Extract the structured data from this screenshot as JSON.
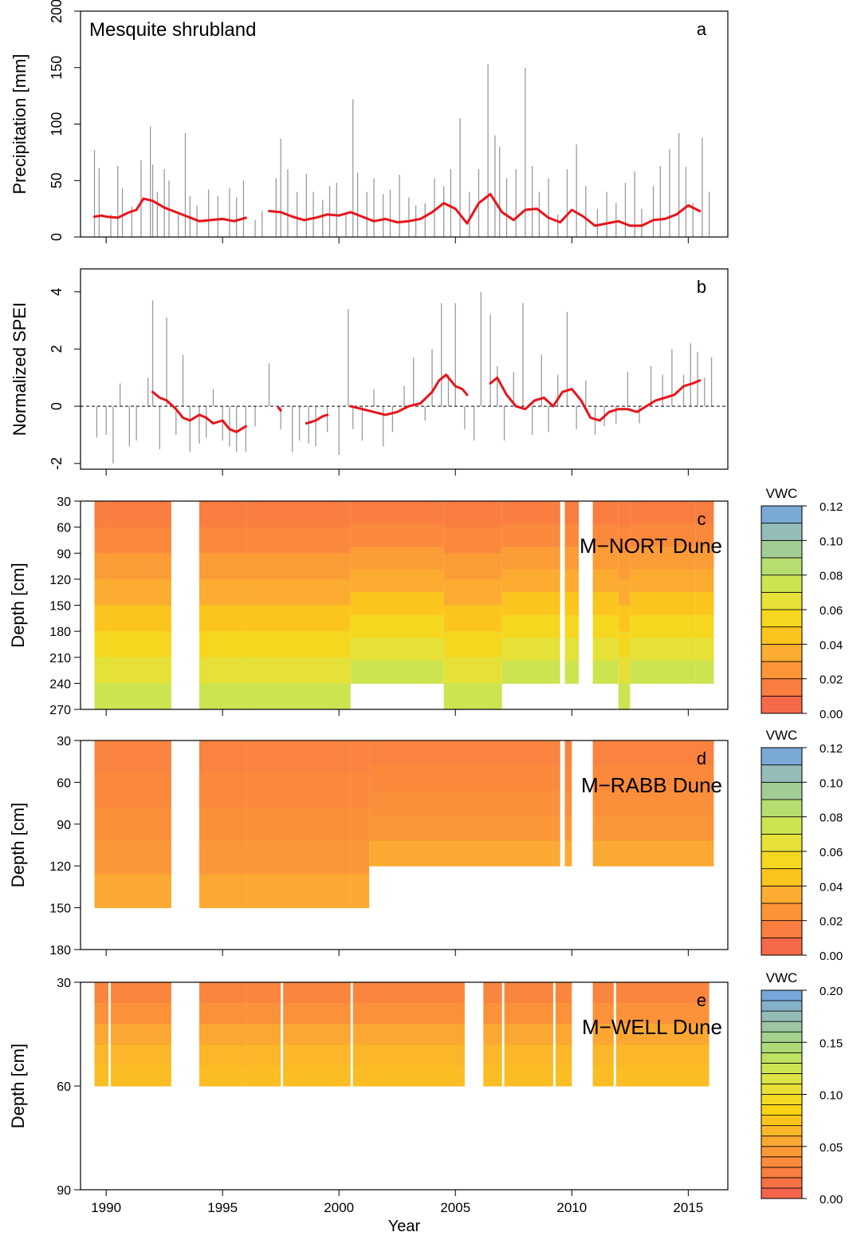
{
  "figure": {
    "xlabel": "Year",
    "xlim": [
      1988.9,
      2016.7
    ],
    "xticks": [
      1990,
      1995,
      2000,
      2005,
      2010,
      2015
    ]
  },
  "chart_data": [
    {
      "panel": "a",
      "letter": "a",
      "type": "bar+line",
      "title": "Mesquite shrubland",
      "ylabel": "Precipitation [mm]",
      "ylim": [
        0,
        200
      ],
      "yticks": [
        0,
        50,
        100,
        150,
        200
      ],
      "zero_line": "dashed",
      "bars": {
        "x": [
          1989.5,
          1989.7,
          1990.2,
          1990.5,
          1990.7,
          1991.1,
          1991.5,
          1991.9,
          1992.0,
          1992.2,
          1992.5,
          1992.7,
          1993.1,
          1993.4,
          1993.6,
          1993.9,
          1994.4,
          1994.8,
          1995.3,
          1995.6,
          1995.9,
          1996.4,
          1996.7,
          1997.3,
          1997.5,
          1997.8,
          1998.2,
          1998.6,
          1998.9,
          1999.3,
          1999.6,
          1999.9,
          2000.3,
          2000.6,
          2000.8,
          2001.2,
          2001.5,
          2001.9,
          2002.2,
          2002.6,
          2003.0,
          2003.3,
          2003.7,
          2004.1,
          2004.5,
          2004.8,
          2005.2,
          2005.6,
          2006.0,
          2006.4,
          2006.7,
          2006.9,
          2007.2,
          2007.6,
          2008.0,
          2008.3,
          2008.6,
          2009.0,
          2009.4,
          2009.8,
          2010.2,
          2010.6,
          2011.1,
          2011.5,
          2011.9,
          2012.3,
          2012.7,
          2013.0,
          2013.5,
          2013.8,
          2014.2,
          2014.6,
          2014.9,
          2015.2,
          2015.6,
          2015.9
        ],
        "values": [
          77,
          61,
          20,
          63,
          43,
          27,
          68,
          98,
          64,
          40,
          60,
          50,
          20,
          92,
          36,
          28,
          42,
          36,
          43,
          35,
          50,
          15,
          23,
          52,
          87,
          60,
          40,
          56,
          40,
          33,
          45,
          48,
          20,
          122,
          57,
          40,
          52,
          38,
          42,
          55,
          35,
          28,
          30,
          52,
          45,
          60,
          105,
          40,
          60,
          153,
          90,
          80,
          52,
          60,
          150,
          63,
          40,
          52,
          20,
          60,
          82,
          45,
          25,
          40,
          30,
          48,
          58,
          25,
          45,
          63,
          78,
          92,
          62,
          30,
          88,
          40
        ]
      },
      "line": {
        "x": [
          1989.5,
          1989.8,
          1990.0,
          1990.5,
          1991.0,
          1991.3,
          1991.6,
          1992.0,
          1992.5,
          1993.0,
          1993.5,
          1994.0,
          1994.5,
          1995.0,
          1995.5,
          1996.0
        ],
        "y": [
          18,
          19,
          18,
          17,
          22,
          24,
          34,
          32,
          26,
          22,
          18,
          14,
          15,
          16,
          14,
          17
        ]
      },
      "line2": {
        "x": [
          1997.0,
          1997.5,
          1998.0,
          1998.5,
          1999.0,
          1999.5,
          2000.0,
          2000.5,
          2001.0,
          2001.5,
          2002.0,
          2002.5,
          2003.0,
          2003.5,
          2004.0,
          2004.5,
          2005.0,
          2005.5,
          2006.0,
          2006.5,
          2007.0,
          2007.5,
          2008.0,
          2008.5,
          2009.0,
          2009.5,
          2010.0,
          2010.5,
          2011.0,
          2011.5,
          2012.0,
          2012.5,
          2013.0,
          2013.5,
          2014.0,
          2014.5,
          2015.0,
          2015.5
        ],
        "y": [
          23,
          22,
          18,
          15,
          17,
          20,
          19,
          22,
          18,
          14,
          16,
          13,
          14,
          16,
          22,
          30,
          25,
          12,
          30,
          38,
          22,
          15,
          24,
          25,
          17,
          13,
          24,
          18,
          10,
          12,
          14,
          10,
          10,
          15,
          16,
          20,
          28,
          23
        ]
      }
    },
    {
      "panel": "b",
      "letter": "b",
      "type": "bar+line",
      "ylabel": "Normalized SPEI",
      "ylim": [
        -2.2,
        4.8
      ],
      "yticks": [
        -2,
        0,
        2,
        4
      ],
      "zero_line": "dashed",
      "bars": {
        "x": [
          1989.6,
          1990.0,
          1990.3,
          1990.6,
          1991.0,
          1991.3,
          1991.8,
          1992.0,
          1992.3,
          1992.6,
          1993.0,
          1993.3,
          1993.6,
          1994.0,
          1994.3,
          1994.6,
          1995.0,
          1995.3,
          1995.6,
          1996.0,
          1996.4,
          1997.0,
          1997.5,
          1998.0,
          1998.3,
          1998.7,
          1999.0,
          1999.5,
          2000.0,
          2000.4,
          2000.6,
          2001.0,
          2001.5,
          2001.9,
          2002.3,
          2002.8,
          2003.2,
          2003.7,
          2004.0,
          2004.4,
          2004.7,
          2005.0,
          2005.4,
          2005.8,
          2006.1,
          2006.5,
          2006.8,
          2007.1,
          2007.5,
          2007.9,
          2008.3,
          2008.7,
          2009.0,
          2009.4,
          2009.8,
          2010.2,
          2010.6,
          2011.0,
          2011.4,
          2011.9,
          2012.4,
          2012.9,
          2013.4,
          2013.9,
          2014.3,
          2014.8,
          2015.1,
          2015.4,
          2015.7,
          2016.0
        ],
        "values": [
          -1.1,
          -1.0,
          -2.0,
          0.8,
          -1.4,
          -1.2,
          1.0,
          3.7,
          -1.5,
          3.1,
          -1.0,
          1.8,
          -1.6,
          -1.3,
          -1.1,
          0.6,
          -1.2,
          -1.4,
          -1.6,
          -1.6,
          -0.7,
          1.5,
          -0.8,
          -1.6,
          -1.2,
          -1.3,
          -1.4,
          -0.9,
          -1.7,
          3.4,
          -0.8,
          -1.2,
          0.6,
          -1.4,
          -0.9,
          0.7,
          1.7,
          -0.5,
          2.0,
          3.6,
          1.1,
          3.6,
          -0.8,
          -1.2,
          4.0,
          3.2,
          1.4,
          -1.2,
          1.2,
          3.6,
          -1.0,
          1.8,
          -0.9,
          1.1,
          3.3,
          -0.8,
          0.9,
          -1.0,
          -0.7,
          -0.6,
          1.2,
          -0.6,
          1.4,
          1.1,
          2.0,
          1.1,
          2.2,
          1.9,
          1.0,
          1.7
        ]
      },
      "line": {
        "x": [
          1992.0,
          1992.3,
          1992.6,
          1993.0,
          1993.3,
          1993.6,
          1994.0,
          1994.3,
          1994.6,
          1995.0,
          1995.3,
          1995.6,
          1996.0
        ],
        "y": [
          0.5,
          0.3,
          0.2,
          -0.1,
          -0.4,
          -0.5,
          -0.3,
          -0.4,
          -0.6,
          -0.5,
          -0.8,
          -0.9,
          -0.7
        ]
      },
      "line2": {
        "x": [
          1997.4,
          1997.5
        ],
        "y": [
          -0.05,
          -0.15
        ]
      },
      "line3": {
        "x": [
          1998.6,
          1999.0,
          1999.3,
          1999.5
        ],
        "y": [
          -0.6,
          -0.5,
          -0.35,
          -0.3
        ]
      },
      "line4": {
        "x": [
          2000.5,
          2001.0,
          2001.5,
          2002.0,
          2002.5,
          2003.0,
          2003.5,
          2004.0,
          2004.3,
          2004.6,
          2005.0,
          2005.3,
          2005.5
        ],
        "y": [
          0.0,
          -0.1,
          -0.2,
          -0.3,
          -0.2,
          0.0,
          0.1,
          0.5,
          0.9,
          1.1,
          0.7,
          0.6,
          0.4
        ]
      },
      "line5": {
        "x": [
          2006.5,
          2006.8,
          2007.2,
          2007.6,
          2008.0,
          2008.4,
          2008.8,
          2009.2,
          2009.6,
          2010.0,
          2010.4,
          2010.8,
          2011.2,
          2011.6,
          2012.0,
          2012.4,
          2012.8,
          2013.2,
          2013.6,
          2014.0,
          2014.4,
          2014.8,
          2015.2,
          2015.5
        ],
        "y": [
          0.8,
          1.0,
          0.4,
          0.0,
          -0.1,
          0.2,
          0.3,
          0.0,
          0.5,
          0.6,
          0.2,
          -0.4,
          -0.5,
          -0.2,
          -0.1,
          -0.1,
          -0.2,
          0.0,
          0.2,
          0.3,
          0.4,
          0.7,
          0.8,
          0.9
        ]
      }
    },
    {
      "panel": "c",
      "letter": "c",
      "type": "heatmap",
      "title": "M−NORT Dune",
      "ylabel": "Depth [cm]",
      "ylim": [
        270,
        30
      ],
      "yticks": [
        30,
        60,
        90,
        120,
        150,
        180,
        210,
        240,
        270
      ],
      "colorbar": {
        "label": "VWC",
        "min": 0.0,
        "max": 0.12,
        "ticks": [
          "0.00",
          "0.02",
          "0.04",
          "0.06",
          "0.08",
          "0.10",
          "0.12"
        ],
        "levels": 12
      },
      "profile": [
        0.015,
        0.02,
        0.028,
        0.035,
        0.045,
        0.055,
        0.065,
        0.075
      ],
      "segments": [
        [
          1989.5,
          1990.1,
          270
        ],
        [
          1990.1,
          1992.8,
          270
        ],
        [
          1994.0,
          1996.0,
          270
        ],
        [
          1996.0,
          2000.5,
          270
        ],
        [
          2000.5,
          2004.5,
          240
        ],
        [
          2004.5,
          2007.0,
          270
        ],
        [
          2007.0,
          2009.2,
          240
        ],
        [
          2009.2,
          2009.5,
          240
        ],
        [
          2009.7,
          2010.3,
          240
        ],
        [
          2010.9,
          2012.0,
          240
        ],
        [
          2012.0,
          2012.5,
          270
        ],
        [
          2012.5,
          2015.3,
          240
        ],
        [
          2015.3,
          2016.1,
          240
        ]
      ]
    },
    {
      "panel": "d",
      "letter": "d",
      "type": "heatmap",
      "title": "M−RABB Dune",
      "ylabel": "Depth [cm]",
      "ylim": [
        180,
        30
      ],
      "yticks": [
        30,
        60,
        90,
        120,
        150,
        180
      ],
      "colorbar": {
        "label": "VWC",
        "min": 0.0,
        "max": 0.12,
        "ticks": [
          "0.00",
          "0.02",
          "0.04",
          "0.06",
          "0.08",
          "0.10",
          "0.12"
        ],
        "levels": 12
      },
      "profile": [
        0.017,
        0.02,
        0.023,
        0.026,
        0.034
      ],
      "segments": [
        [
          1989.5,
          1992.8,
          150
        ],
        [
          1994.0,
          1996.0,
          150
        ],
        [
          1996.0,
          2000.5,
          150
        ],
        [
          2000.5,
          2001.3,
          150
        ],
        [
          2001.3,
          2009.2,
          120
        ],
        [
          2009.2,
          2009.5,
          120
        ],
        [
          2009.7,
          2010.0,
          120
        ],
        [
          2010.9,
          2016.1,
          120
        ]
      ]
    },
    {
      "panel": "e",
      "letter": "e",
      "type": "heatmap",
      "title": "M−WELL Dune",
      "ylabel": "Depth [cm]",
      "ylim": [
        90,
        30
      ],
      "yticks": [
        30,
        60,
        90
      ],
      "colorbar": {
        "label": "VWC",
        "min": 0.0,
        "max": 0.2,
        "ticks": [
          "0.00",
          "0.05",
          "0.10",
          "0.15",
          "0.20"
        ],
        "levels": 20
      },
      "profile": [
        0.03,
        0.04,
        0.055,
        0.065,
        0.07
      ],
      "segments": [
        [
          1989.5,
          1990.1,
          60
        ],
        [
          1990.2,
          1992.8,
          60
        ],
        [
          1994.0,
          1996.0,
          60
        ],
        [
          1996.0,
          1997.5,
          60
        ],
        [
          1997.6,
          2000.5,
          60
        ],
        [
          2000.6,
          2005.4,
          60
        ],
        [
          2006.2,
          2007.0,
          60
        ],
        [
          2007.1,
          2009.2,
          60
        ],
        [
          2009.3,
          2010.0,
          60
        ],
        [
          2010.9,
          2011.8,
          60
        ],
        [
          2011.9,
          2015.9,
          60
        ]
      ]
    }
  ]
}
